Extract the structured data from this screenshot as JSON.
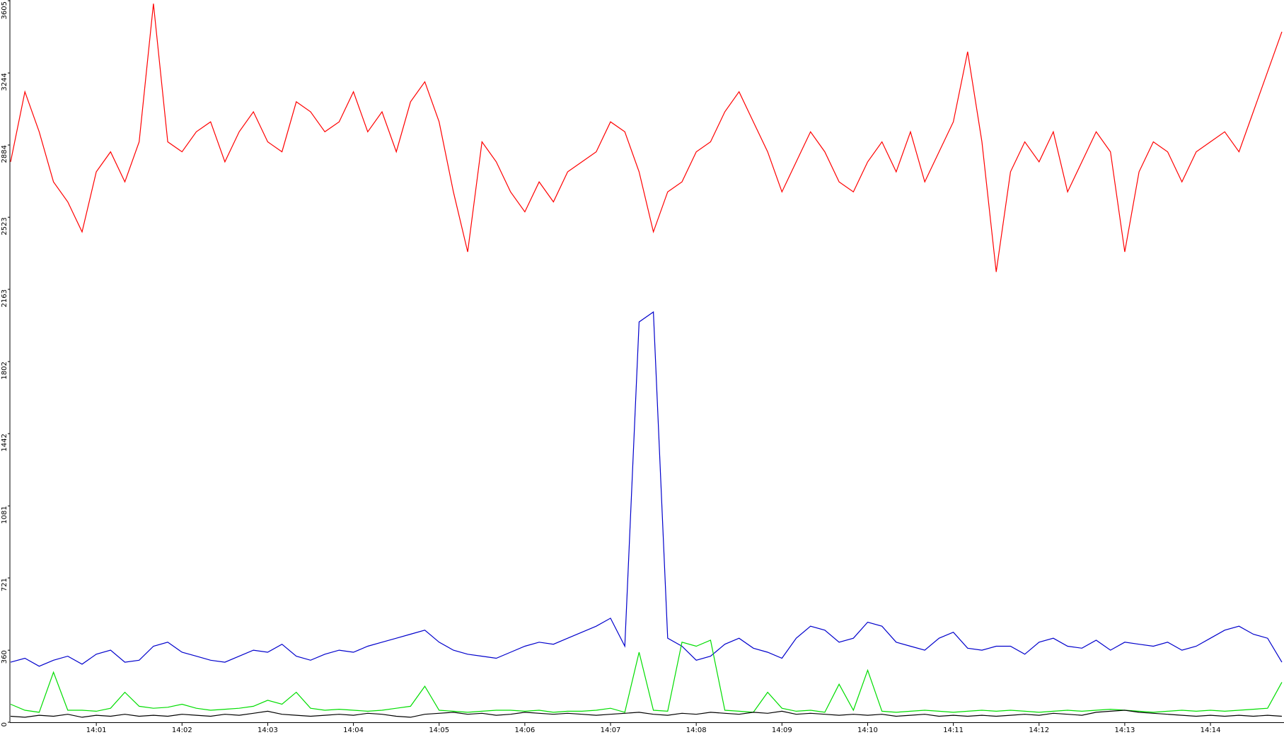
{
  "chart_data": {
    "type": "line",
    "categories": [
      null,
      null,
      null,
      null,
      null,
      null,
      "14:01",
      null,
      null,
      null,
      null,
      null,
      "14:02",
      null,
      null,
      null,
      null,
      null,
      "14:03",
      null,
      null,
      null,
      null,
      null,
      "14:04",
      null,
      null,
      null,
      null,
      null,
      "14:05",
      null,
      null,
      null,
      null,
      null,
      "14:06",
      null,
      null,
      null,
      null,
      null,
      "14:07",
      null,
      null,
      null,
      null,
      null,
      "14:08",
      null,
      null,
      null,
      null,
      null,
      "14:09",
      null,
      null,
      null,
      null,
      null,
      "14:10",
      null,
      null,
      null,
      null,
      null,
      "14:11",
      null,
      null,
      null,
      null,
      null,
      "14:12",
      null,
      null,
      null,
      null,
      null,
      "14:13",
      null,
      null,
      null,
      null,
      null,
      "14:14",
      null,
      null,
      null,
      null,
      null
    ],
    "ylim": [
      0,
      3605
    ],
    "yticks": [
      0,
      360,
      721,
      1081,
      1442,
      1802,
      2163,
      2523,
      2884,
      3244,
      3605
    ],
    "grid": false,
    "series": [
      {
        "color": "#ff0000",
        "values": [
          2800,
          3150,
          2950,
          2700,
          2600,
          2450,
          2750,
          2850,
          2700,
          2900,
          3590,
          2900,
          2850,
          2950,
          3000,
          2800,
          2950,
          3050,
          2900,
          2850,
          3100,
          3050,
          2950,
          3000,
          3150,
          2950,
          3050,
          2850,
          3100,
          3200,
          3000,
          2650,
          2350,
          2900,
          2800,
          2650,
          2550,
          2700,
          2600,
          2750,
          2800,
          2850,
          3000,
          2950,
          2750,
          2450,
          2650,
          2700,
          2850,
          2900,
          3050,
          3150,
          3000,
          2850,
          2650,
          2800,
          2950,
          2850,
          2700,
          2650,
          2800,
          2900,
          2750,
          2950,
          2700,
          2850,
          3000,
          3350,
          2900,
          2250,
          2750,
          2900,
          2800,
          2950,
          2650,
          2800,
          2950,
          2850,
          2350,
          2750,
          2900,
          2850,
          2700,
          2850,
          2900,
          2950,
          2850,
          3050,
          3250,
          3450
        ]
      },
      {
        "color": "#0000cc",
        "values": [
          300,
          320,
          280,
          310,
          330,
          290,
          340,
          360,
          300,
          310,
          380,
          400,
          350,
          330,
          310,
          300,
          330,
          360,
          350,
          390,
          330,
          310,
          340,
          360,
          350,
          380,
          400,
          420,
          440,
          460,
          400,
          360,
          340,
          330,
          320,
          350,
          380,
          400,
          390,
          420,
          450,
          480,
          520,
          380,
          2000,
          2050,
          420,
          380,
          310,
          330,
          390,
          420,
          370,
          350,
          320,
          420,
          480,
          460,
          400,
          420,
          500,
          480,
          400,
          380,
          360,
          420,
          450,
          370,
          360,
          380,
          380,
          340,
          400,
          420,
          380,
          370,
          410,
          360,
          400,
          390,
          380,
          400,
          360,
          380,
          420,
          460,
          480,
          440,
          420,
          300
        ]
      },
      {
        "color": "#00dd00",
        "values": [
          90,
          60,
          50,
          250,
          60,
          60,
          55,
          70,
          150,
          80,
          70,
          75,
          90,
          70,
          60,
          65,
          70,
          80,
          110,
          90,
          150,
          70,
          60,
          65,
          60,
          55,
          60,
          70,
          80,
          180,
          60,
          55,
          50,
          55,
          60,
          60,
          55,
          60,
          50,
          55,
          55,
          60,
          70,
          50,
          350,
          60,
          55,
          400,
          380,
          410,
          60,
          55,
          50,
          150,
          70,
          55,
          60,
          50,
          190,
          60,
          260,
          55,
          50,
          55,
          60,
          55,
          50,
          55,
          60,
          55,
          60,
          55,
          50,
          55,
          60,
          55,
          60,
          65,
          60,
          55,
          50,
          55,
          60,
          55,
          60,
          55,
          60,
          65,
          70,
          200
        ]
      },
      {
        "color": "#000000",
        "values": [
          30,
          25,
          35,
          30,
          40,
          25,
          35,
          30,
          40,
          30,
          35,
          30,
          40,
          35,
          30,
          40,
          35,
          45,
          55,
          40,
          35,
          30,
          35,
          40,
          35,
          45,
          40,
          30,
          25,
          40,
          45,
          50,
          40,
          45,
          35,
          40,
          50,
          45,
          40,
          45,
          40,
          35,
          40,
          45,
          50,
          40,
          35,
          45,
          40,
          50,
          45,
          40,
          50,
          45,
          55,
          40,
          45,
          40,
          35,
          40,
          35,
          40,
          30,
          35,
          40,
          30,
          35,
          30,
          35,
          30,
          35,
          40,
          35,
          45,
          40,
          35,
          50,
          55,
          60,
          50,
          45,
          40,
          35,
          30,
          35,
          30,
          35,
          30,
          35,
          30
        ]
      }
    ]
  }
}
